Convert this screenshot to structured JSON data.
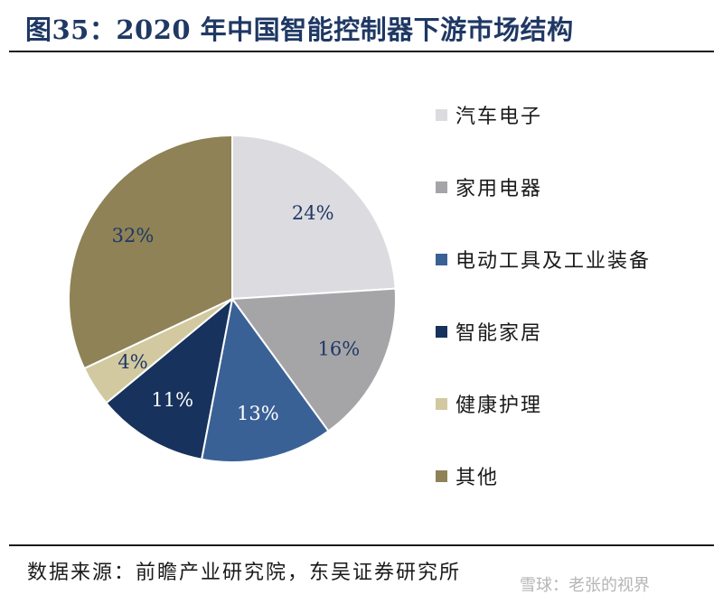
{
  "header": {
    "title": "图35：2020 年中国智能控制器下游市场结构"
  },
  "chart_data": {
    "type": "pie",
    "title": "图35：2020 年中国智能控制器下游市场结构",
    "slices": [
      {
        "label": "汽车电子",
        "value": 24,
        "display": "24%",
        "color": "#dcdbe0"
      },
      {
        "label": "家用电器",
        "value": 16,
        "display": "16%",
        "color": "#a5a5a8"
      },
      {
        "label": "电动工具及工业装备",
        "value": 13,
        "display": "13%",
        "color": "#3a6196"
      },
      {
        "label": "智能家居",
        "value": 11,
        "display": "11%",
        "color": "#17325c"
      },
      {
        "label": "健康护理",
        "value": 4,
        "display": "4%",
        "color": "#d2c9a0"
      },
      {
        "label": "其他",
        "value": 32,
        "display": "32%",
        "color": "#8e8256"
      }
    ],
    "legend_position": "right"
  },
  "footer": {
    "source": "数据来源：前瞻产业研究院，东吴证券研究所",
    "watermark": "雪球：老张的视界"
  }
}
